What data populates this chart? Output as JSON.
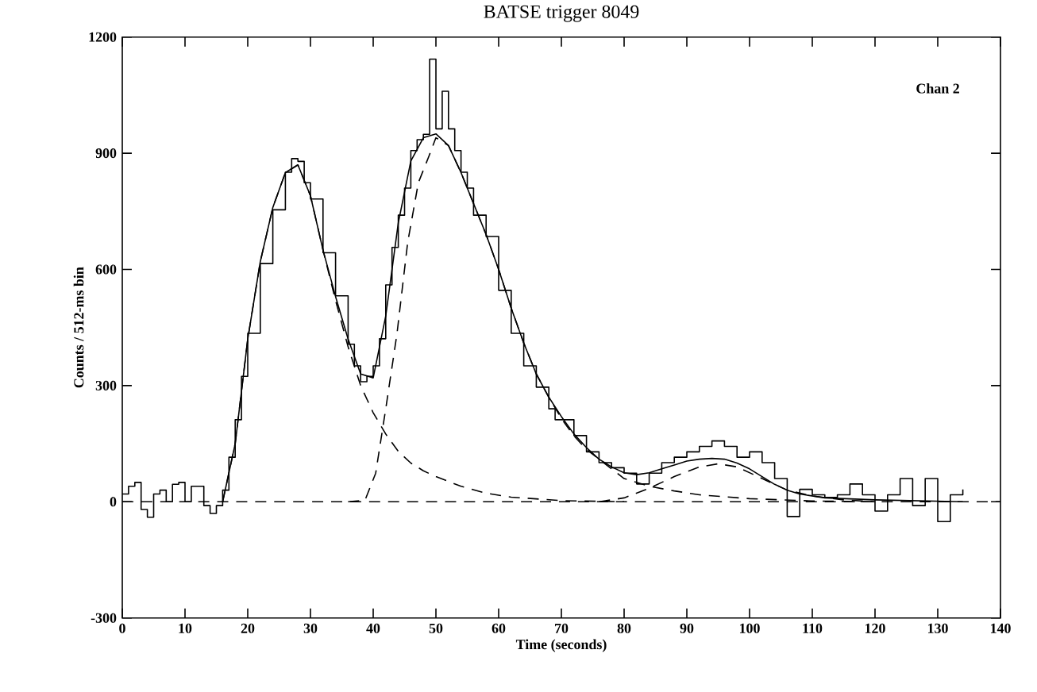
{
  "chart_data": {
    "type": "line",
    "title": "BATSE trigger 8049",
    "xlabel": "Time (seconds)",
    "ylabel": "Counts / 512-ms bin",
    "annotations": [
      "Chan 2"
    ],
    "xlim": [
      0,
      140
    ],
    "ylim": [
      -300,
      1200
    ],
    "xticks": [
      0,
      10,
      20,
      30,
      40,
      50,
      60,
      70,
      80,
      90,
      100,
      110,
      120,
      130,
      140
    ],
    "yticks": [
      -300,
      0,
      300,
      600,
      900,
      1200
    ],
    "ref_lines": [
      {
        "axis": "y",
        "value": 0,
        "color": "#000000",
        "line_style": "dashed"
      }
    ],
    "series": [
      {
        "type": "step",
        "color": "#000000",
        "line_style": "solid",
        "x": [
          0,
          1,
          2,
          3,
          4,
          5,
          6,
          7,
          8,
          9,
          10,
          11,
          12,
          13,
          14,
          15,
          16,
          17,
          18,
          19,
          20,
          22,
          24,
          26,
          27,
          28,
          29,
          30,
          32,
          34,
          36,
          37,
          38,
          39,
          40,
          41,
          42,
          43,
          44,
          45,
          46,
          47,
          48,
          49,
          50,
          51,
          52,
          53,
          54,
          55,
          56,
          58,
          60,
          62,
          64,
          66,
          68,
          69,
          70,
          72,
          74,
          76,
          78,
          80,
          82,
          84,
          86,
          88,
          90,
          92,
          94,
          96,
          98,
          100,
          102,
          104,
          106,
          108,
          110,
          112,
          114,
          116,
          118,
          120,
          122,
          124,
          126,
          128,
          130,
          132,
          134
        ],
        "values": [
          20,
          40,
          50,
          -20,
          -40,
          20,
          30,
          0,
          45,
          50,
          0,
          40,
          40,
          -10,
          -30,
          -10,
          30,
          115,
          212,
          324,
          435,
          615,
          754,
          851,
          886,
          879,
          824,
          782,
          643,
          532,
          407,
          351,
          310,
          324,
          351,
          421,
          560,
          657,
          740,
          810,
          907,
          935,
          949,
          1143,
          963,
          1060,
          963,
          907,
          851,
          810,
          740,
          685,
          546,
          435,
          351,
          296,
          240,
          212,
          212,
          171,
          129,
          101,
          88,
          74,
          46,
          74,
          101,
          115,
          129,
          143,
          157,
          143,
          115,
          129,
          101,
          60,
          -38,
          32,
          18,
          11,
          18,
          46,
          18,
          -24,
          18,
          60,
          -10,
          60,
          -51,
          18,
          32
        ]
      },
      {
        "color": "#000000",
        "line_style": "solid",
        "x": [
          16,
          18,
          20,
          22,
          24,
          26,
          28,
          30,
          32,
          34,
          36,
          38,
          40,
          42,
          44,
          46,
          48,
          50,
          52,
          54,
          56,
          58,
          60,
          62,
          64,
          66,
          68,
          70,
          72,
          74,
          76,
          78,
          80,
          82,
          84,
          86,
          88,
          90,
          92,
          94,
          96,
          98,
          100,
          102,
          104,
          106,
          108,
          112,
          120,
          134
        ],
        "values": [
          0,
          150,
          420,
          620,
          760,
          850,
          870,
          790,
          650,
          530,
          420,
          330,
          320,
          480,
          720,
          880,
          940,
          950,
          920,
          850,
          770,
          690,
          600,
          500,
          410,
          330,
          270,
          220,
          175,
          140,
          110,
          90,
          75,
          70,
          75,
          85,
          95,
          105,
          110,
          112,
          110,
          100,
          85,
          65,
          45,
          30,
          20,
          10,
          5,
          0
        ]
      },
      {
        "color": "#000000",
        "line_style": "dashed",
        "x": [
          16,
          18,
          20,
          22,
          24,
          26,
          28,
          30,
          32,
          34,
          36,
          38,
          40,
          42,
          44,
          46,
          48,
          50,
          54,
          58,
          62,
          70,
          80
        ],
        "values": [
          0,
          150,
          420,
          620,
          760,
          850,
          870,
          790,
          650,
          520,
          400,
          300,
          230,
          175,
          130,
          100,
          80,
          65,
          40,
          22,
          12,
          3,
          0
        ]
      },
      {
        "color": "#000000",
        "line_style": "dashed",
        "x": [
          36,
          38.7,
          40.4,
          42,
          43.8,
          45.5,
          47.2,
          48.9,
          50,
          52,
          54,
          56,
          58,
          60,
          62,
          64,
          66,
          68,
          70,
          72,
          74,
          76,
          80,
          84,
          88,
          92,
          100,
          110,
          120
        ],
        "values": [
          0,
          4,
          74,
          240,
          435,
          670,
          824,
          893,
          940,
          920,
          850,
          770,
          690,
          600,
          500,
          410,
          330,
          270,
          215,
          170,
          135,
          110,
          60,
          40,
          28,
          18,
          8,
          2,
          0
        ]
      },
      {
        "color": "#000000",
        "line_style": "dashed",
        "x": [
          76,
          80,
          84,
          88,
          92,
          95,
          98,
          102,
          106,
          110,
          115,
          120
        ],
        "values": [
          0,
          10,
          35,
          65,
          90,
          98,
          90,
          60,
          30,
          15,
          5,
          0
        ]
      }
    ]
  }
}
